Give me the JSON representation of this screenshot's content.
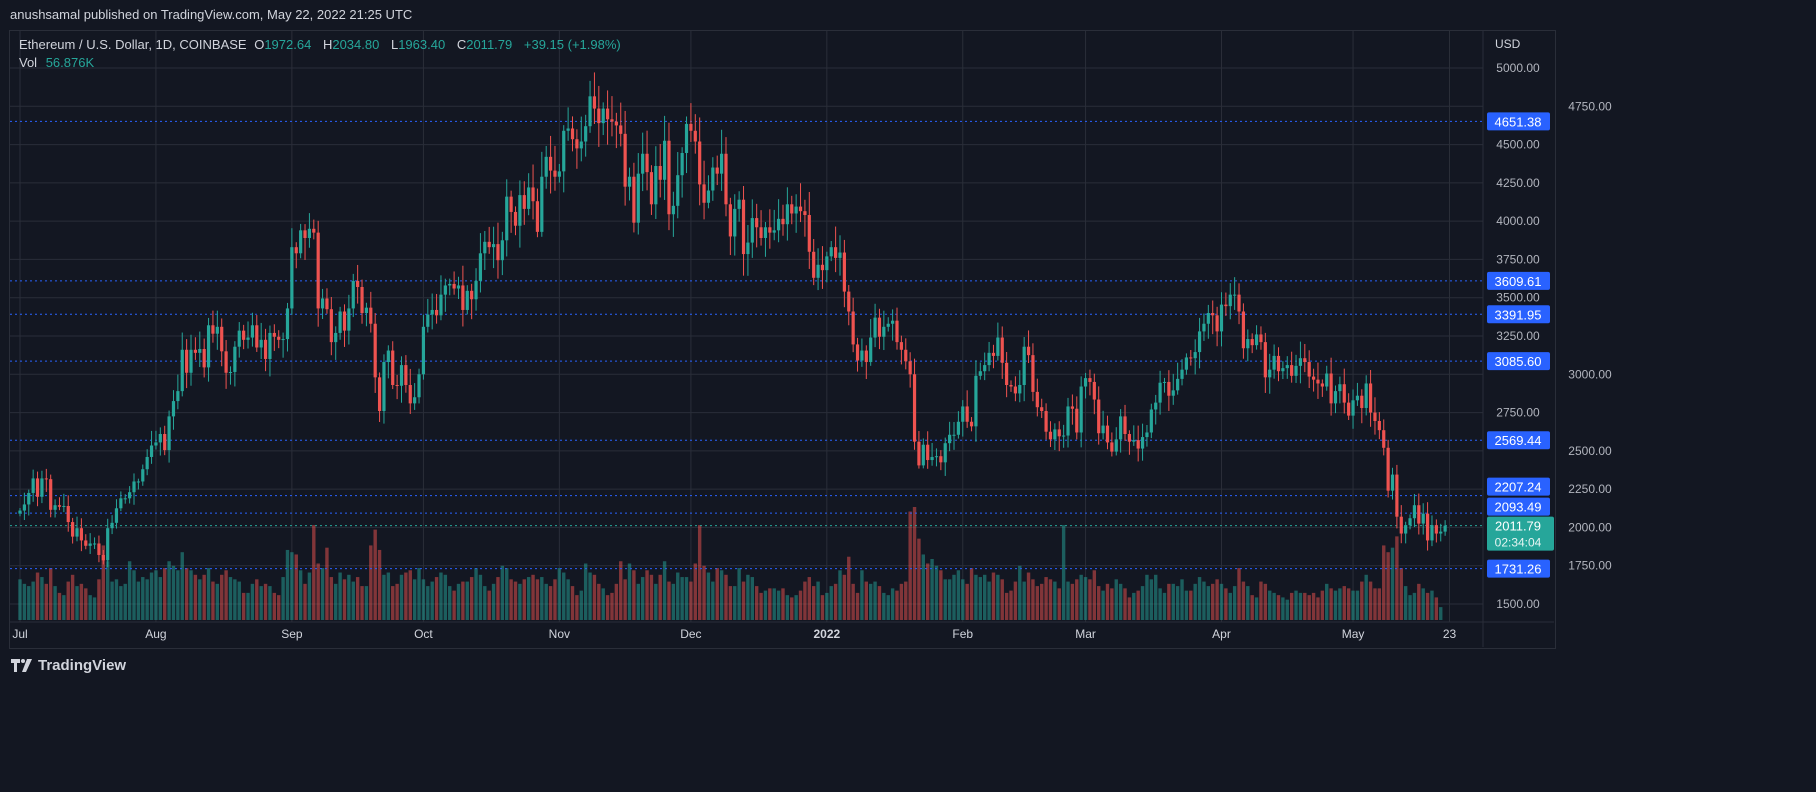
{
  "header": {
    "published": "anushsamal published on TradingView.com, May 22, 2022 21:25 UTC"
  },
  "legend": {
    "symbol": "Ethereum / U.S. Dollar, 1D, COINBASE",
    "o_label": "O",
    "o": "1972.64",
    "h_label": "H",
    "h": "2034.80",
    "l_label": "L",
    "l": "1963.40",
    "c_label": "C",
    "c": "2011.79",
    "change": "+39.15 (+1.98%)",
    "vol_label": "Vol",
    "vol": "56.876K"
  },
  "footer": {
    "brand": "TradingView"
  },
  "colors": {
    "background": "#131722",
    "up": "#26a69a",
    "down": "#ef5350",
    "level_line": "#2962ff",
    "grid": "#2a2e39"
  },
  "chart_data": {
    "type": "candlestick",
    "title": "Ethereum / U.S. Dollar, 1D, COINBASE",
    "y_axis_unit": "USD",
    "ylim": [
      1380,
      5100
    ],
    "y_ticks": [
      "5000.00",
      "4750.00",
      "4500.00",
      "4250.00",
      "4000.00",
      "3750.00",
      "3500.00",
      "3250.00",
      "3000.00",
      "2750.00",
      "2500.00",
      "2250.00",
      "2000.00",
      "1750.00",
      "1500.00"
    ],
    "x_ticks": [
      "Jul",
      "Aug",
      "Sep",
      "Oct",
      "Nov",
      "Dec",
      "2022",
      "Feb",
      "Mar",
      "Apr",
      "May",
      "23"
    ],
    "start_date": "2021-07-01",
    "end_date": "2022-05-22",
    "grid": true,
    "horizontal_levels": [
      "4651.38",
      "3609.61",
      "3391.95",
      "3085.60",
      "2569.44",
      "2207.24",
      "2093.49",
      "1731.26"
    ],
    "last_price": "2011.79",
    "countdown": "02:34:04",
    "first_open": 2090,
    "closes": [
      2110,
      2150,
      2225,
      2320,
      2200,
      2320,
      2315,
      2115,
      2145,
      2135,
      2140,
      2035,
      1940,
      1995,
      1915,
      1880,
      1895,
      1895,
      1820,
      1785,
      1995,
      2030,
      2125,
      2190,
      2190,
      2230,
      2300,
      2300,
      2380,
      2460,
      2535,
      2555,
      2610,
      2505,
      2725,
      2825,
      2890,
      3160,
      3010,
      3160,
      3140,
      3165,
      3045,
      3320,
      3265,
      3310,
      3150,
      3010,
      3015,
      3180,
      3285,
      3225,
      3240,
      3320,
      3175,
      3225,
      3100,
      3270,
      3245,
      3225,
      3230,
      3430,
      3830,
      3790,
      3940,
      3890,
      3950,
      3925,
      3430,
      3495,
      3425,
      3210,
      3270,
      3410,
      3285,
      3430,
      3610,
      3570,
      3400,
      3435,
      3330,
      2980,
      2760,
      3080,
      3155,
      2930,
      2925,
      3060,
      2930,
      2810,
      2850,
      3000,
      3310,
      3390,
      3420,
      3385,
      3520,
      3580,
      3590,
      3560,
      3580,
      3420,
      3545,
      3490,
      3610,
      3790,
      3865,
      3830,
      3850,
      3745,
      3875,
      4160,
      4060,
      3970,
      4170,
      4080,
      4220,
      4130,
      3930,
      4290,
      4420,
      4330,
      4290,
      4325,
      4590,
      4605,
      4535,
      4475,
      4520,
      4620,
      4815,
      4735,
      4640,
      4735,
      4665,
      4650,
      4625,
      4570,
      4225,
      4290,
      3990,
      4310,
      4440,
      4320,
      4110,
      4360,
      4270,
      4525,
      4045,
      4100,
      4300,
      4445,
      4635,
      4590,
      4520,
      4240,
      4120,
      4200,
      4350,
      4310,
      4440,
      4110,
      3900,
      4080,
      4140,
      3785,
      3860,
      4020,
      3960,
      3890,
      3960,
      3925,
      3940,
      4015,
      3980,
      4110,
      4050,
      4095,
      4065,
      4040,
      3800,
      3630,
      3715,
      3680,
      3770,
      3830,
      3760,
      3795,
      3540,
      3410,
      3195,
      3090,
      3155,
      3080,
      3240,
      3370,
      3245,
      3310,
      3330,
      3350,
      3210,
      3160,
      3085,
      3000,
      2560,
      2405,
      2540,
      2440,
      2460,
      2465,
      2425,
      2550,
      2605,
      2605,
      2690,
      2790,
      2690,
      2660,
      2990,
      3020,
      3060,
      3140,
      3120,
      3240,
      3075,
      2930,
      2920,
      2875,
      2930,
      3180,
      3125,
      2885,
      2785,
      2760,
      2625,
      2575,
      2640,
      2595,
      2600,
      2790,
      2775,
      2620,
      2920,
      2975,
      2950,
      2835,
      2615,
      2665,
      2555,
      2495,
      2575,
      2725,
      2610,
      2560,
      2570,
      2515,
      2590,
      2620,
      2770,
      2815,
      2945,
      2950,
      2860,
      2895,
      2970,
      3030,
      3110,
      3105,
      3145,
      3280,
      3330,
      3400,
      3385,
      3280,
      3455,
      3445,
      3520,
      3520,
      3410,
      3170,
      3230,
      3190,
      3260,
      3210,
      2980,
      3030,
      3120,
      3020,
      3040,
      3060,
      2990,
      3055,
      3105,
      3080,
      2985,
      2965,
      2940,
      2920,
      3005,
      2810,
      2890,
      2935,
      2815,
      2730,
      2830,
      2860,
      2780,
      2940,
      2750,
      2695,
      2635,
      2520,
      2240,
      2345,
      2070,
      1960,
      2015,
      2060,
      2145,
      2025,
      2090,
      1915,
      2015,
      1960,
      1972.64,
      2011.79
    ],
    "volume_k": [
      180,
      160,
      150,
      170,
      210,
      190,
      160,
      230,
      150,
      120,
      110,
      170,
      200,
      150,
      160,
      140,
      110,
      100,
      180,
      330,
      260,
      170,
      180,
      150,
      160,
      260,
      220,
      170,
      190,
      180,
      210,
      220,
      190,
      230,
      260,
      240,
      220,
      300,
      230,
      220,
      200,
      180,
      200,
      230,
      170,
      160,
      200,
      220,
      190,
      180,
      170,
      120,
      120,
      160,
      180,
      150,
      160,
      150,
      120,
      110,
      190,
      310,
      300,
      290,
      220,
      160,
      210,
      420,
      250,
      230,
      320,
      190,
      160,
      210,
      180,
      200,
      170,
      190,
      150,
      150,
      330,
      400,
      310,
      200,
      210,
      150,
      160,
      200,
      210,
      220,
      180,
      230,
      180,
      150,
      170,
      190,
      210,
      200,
      150,
      130,
      160,
      170,
      170,
      190,
      230,
      200,
      150,
      130,
      160,
      190,
      240,
      230,
      180,
      170,
      160,
      180,
      190,
      200,
      180,
      190,
      160,
      150,
      180,
      230,
      210,
      180,
      150,
      110,
      130,
      250,
      210,
      200,
      160,
      140,
      110,
      120,
      160,
      260,
      180,
      250,
      220,
      160,
      190,
      220,
      200,
      160,
      200,
      260,
      170,
      160,
      210,
      190,
      190,
      170,
      250,
      420,
      240,
      210,
      170,
      230,
      220,
      200,
      150,
      150,
      230,
      170,
      200,
      190,
      150,
      120,
      130,
      140,
      140,
      130,
      140,
      110,
      100,
      110,
      130,
      170,
      190,
      150,
      170,
      110,
      120,
      150,
      160,
      220,
      200,
      280,
      160,
      120,
      220,
      170,
      160,
      170,
      150,
      120,
      110,
      140,
      130,
      160,
      170,
      480,
      500,
      360,
      290,
      250,
      270,
      240,
      220,
      180,
      180,
      200,
      220,
      180,
      160,
      230,
      200,
      190,
      200,
      170,
      210,
      200,
      180,
      120,
      130,
      170,
      240,
      170,
      210,
      180,
      150,
      160,
      190,
      180,
      170,
      140,
      420,
      170,
      160,
      180,
      200,
      190,
      180,
      220,
      150,
      130,
      160,
      140,
      180,
      160,
      140,
      100,
      120,
      130,
      150,
      200,
      180,
      200,
      140,
      120,
      160,
      160,
      150,
      180,
      130,
      130,
      160,
      190,
      170,
      150,
      160,
      180,
      160,
      140,
      120,
      150,
      230,
      170,
      150,
      110,
      100,
      170,
      160,
      130,
      120,
      110,
      100,
      90,
      120,
      130,
      120,
      120,
      110,
      120,
      100,
      130,
      160,
      140,
      130,
      140,
      150,
      140,
      130,
      130,
      170,
      200,
      170,
      140,
      140,
      330,
      300,
      320,
      370,
      230,
      150,
      110,
      120,
      160,
      140,
      120,
      130,
      100,
      57
    ]
  }
}
